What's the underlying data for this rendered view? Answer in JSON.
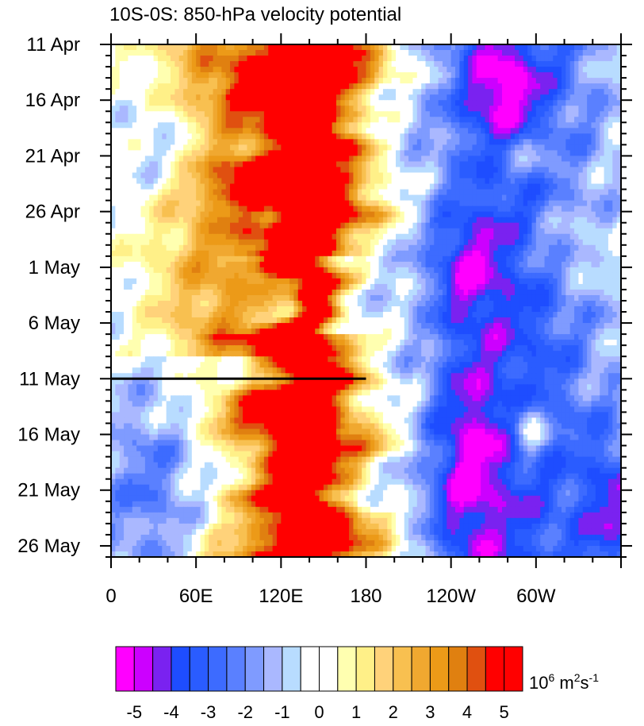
{
  "chart_data": {
    "type": "heatmap",
    "title": "10S-0S: 850-hPa velocity potential",
    "x_ticks": [
      "0",
      "60E",
      "120E",
      "180",
      "120W",
      "60W"
    ],
    "x_tick_longitudes_east": [
      0,
      60,
      120,
      180,
      240,
      300
    ],
    "x_range_longitude_east": [
      0,
      360
    ],
    "y_ticks": [
      "11 Apr",
      "16 Apr",
      "21 Apr",
      "26 Apr",
      "1 May",
      "6 May",
      "11 May",
      "16 May",
      "21 May",
      "26 May"
    ],
    "y_tick_day_index": [
      0,
      5,
      10,
      15,
      20,
      25,
      30,
      35,
      40,
      45
    ],
    "y_range_day_index": [
      0,
      46
    ],
    "reference_line": {
      "day_index": 30,
      "from_longitude_east": 0,
      "to_longitude_east": 180
    },
    "colorbar": {
      "units": "10^6 m^2 s^-1",
      "tick_labels": [
        "-5",
        "-4",
        "-3",
        "-2",
        "-1",
        "0",
        "1",
        "2",
        "3",
        "4",
        "5"
      ],
      "levels": [
        -5,
        -4.5,
        -4,
        -3.5,
        -3,
        -2.5,
        -2,
        -1.5,
        -1,
        -0.5,
        0,
        0.5,
        1,
        1.5,
        2,
        2.5,
        3,
        3.5,
        4,
        4.5,
        5
      ],
      "colors": [
        "#ff00ff",
        "#cc00ff",
        "#7a22f0",
        "#1e4dff",
        "#2a5cff",
        "#3d6bff",
        "#5a80ff",
        "#7f9bff",
        "#aab8ff",
        "#b8dcff",
        "#ffffff",
        "#ffffff",
        "#ffffb0",
        "#fff088",
        "#ffd27a",
        "#f8c050",
        "#f0a830",
        "#ec9a18",
        "#e08010",
        "#e05010",
        "#ff0000",
        "#ff0000"
      ]
    },
    "field_description_centers": [
      {
        "lon": 140,
        "day": 2,
        "value": 6,
        "spread_lon": 45,
        "spread_day": 40
      },
      {
        "lon": 135,
        "day": 40,
        "value": 6,
        "spread_lon": 45,
        "spread_day": 18
      },
      {
        "lon": 290,
        "day": 15,
        "value": -3,
        "spread_lon": 60,
        "spread_day": 30
      },
      {
        "lon": 250,
        "day": 38,
        "value": -5,
        "spread_lon": 30,
        "spread_day": 10
      }
    ]
  },
  "colorbar_unit_text": {
    "base": "10",
    "exp1": "6",
    "mid": " m",
    "exp2": "2",
    "mid2": "s",
    "exp3": "-1"
  }
}
